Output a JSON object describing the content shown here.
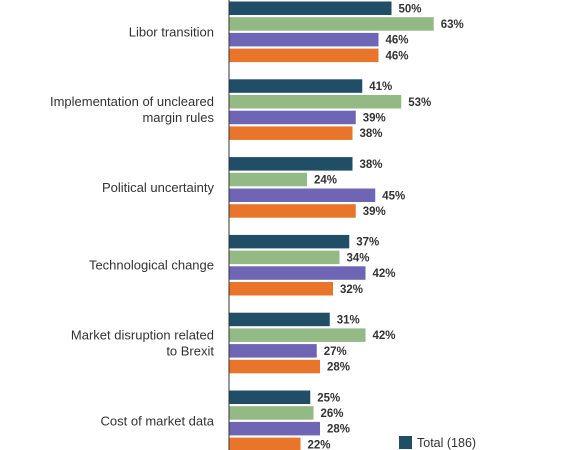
{
  "chart_data": {
    "type": "bar",
    "orientation": "horizontal",
    "categories": [
      [
        "Libor transition"
      ],
      [
        "Implementation of uncleared",
        "margin rules"
      ],
      [
        "Political uncertainty"
      ],
      [
        "Technological change"
      ],
      [
        "Market disruption related",
        "to Brexit"
      ],
      [
        "Cost of market data"
      ]
    ],
    "series": [
      {
        "name": "Total (186)",
        "color": "#1f4e66",
        "values": [
          50,
          41,
          38,
          37,
          31,
          25
        ]
      },
      {
        "color": "#93b985",
        "values": [
          63,
          53,
          24,
          34,
          42,
          26
        ]
      },
      {
        "color": "#6e66b5",
        "values": [
          46,
          39,
          45,
          42,
          27,
          28
        ]
      },
      {
        "color": "#e8752a",
        "values": [
          46,
          38,
          39,
          32,
          28,
          22
        ]
      }
    ],
    "value_suffix": "%",
    "xlim": [
      0,
      100
    ],
    "grid": false,
    "legend": "bottom-right",
    "legend_entries": [
      "Total (186)"
    ]
  }
}
